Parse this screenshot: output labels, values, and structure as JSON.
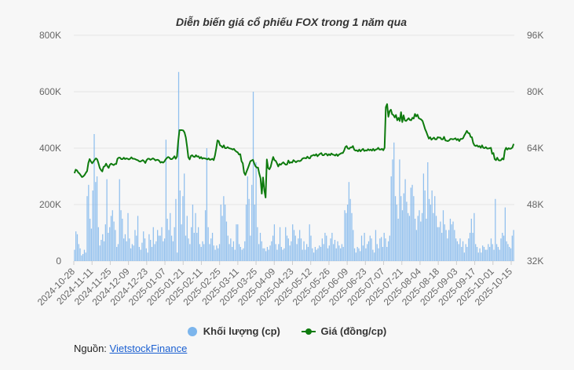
{
  "chart_data": {
    "type": "bar+line",
    "title": "Diễn biến giá cổ phiếu FOX trong 1 năm qua",
    "y_left": {
      "ticks": [
        "800K",
        "600K",
        "400K",
        "200K",
        "0"
      ],
      "ylim": [
        0,
        800000
      ]
    },
    "y_right": {
      "ticks": [
        "96K",
        "80K",
        "64K",
        "48K",
        "32K"
      ],
      "ylim": [
        32000,
        96000
      ]
    },
    "x_tick_labels": [
      "2024-10-28",
      "2024-11-11",
      "2024-11-25",
      "2024-12-09",
      "2024-12-23",
      "2025-01-07",
      "2025-01-21",
      "2025-02-11",
      "2025-02-25",
      "2025-03-11",
      "2025-03-25",
      "2025-04-09",
      "2025-04-23",
      "2025-05-12",
      "2025-05-26",
      "2025-06-09",
      "2025-06-23",
      "2025-07-07",
      "2025-07-21",
      "2025-08-04",
      "2025-08-18",
      "2025-09-03",
      "2025-09-17",
      "2025-10-01",
      "2025-10-15"
    ],
    "legend": [
      "Khối lượng (cp)",
      "Giá (đồng/cp)"
    ],
    "volume": [
      40000,
      105000,
      95000,
      60000,
      45000,
      20000,
      25000,
      40000,
      30000,
      230000,
      270000,
      150000,
      115000,
      250000,
      450000,
      280000,
      300000,
      120000,
      55000,
      75000,
      95000,
      70000,
      130000,
      290000,
      100000,
      120000,
      160000,
      180000,
      140000,
      110000,
      50000,
      60000,
      290000,
      180000,
      150000,
      80000,
      95000,
      70000,
      170000,
      80000,
      45000,
      60000,
      55000,
      110000,
      90000,
      160000,
      50000,
      40000,
      65000,
      105000,
      80000,
      45000,
      30000,
      95000,
      75000,
      50000,
      120000,
      60000,
      70000,
      110000,
      90000,
      90000,
      120000,
      70000,
      80000,
      430000,
      150000,
      110000,
      170000,
      90000,
      70000,
      120000,
      220000,
      30000,
      670000,
      250000,
      130000,
      230000,
      310000,
      90000,
      160000,
      80000,
      60000,
      120000,
      200000,
      100000,
      170000,
      100000,
      120000,
      60000,
      50000,
      70000,
      60000,
      180000,
      400000,
      120000,
      60000,
      80000,
      100000,
      55000,
      40000,
      55000,
      45000,
      60000,
      200000,
      160000,
      230000,
      200000,
      140000,
      90000,
      60000,
      80000,
      50000,
      70000,
      40000,
      130000,
      130000,
      60000,
      50000,
      40000,
      45000,
      70000,
      200000,
      300000,
      220000,
      90000,
      270000,
      600000,
      200000,
      350000,
      120000,
      60000,
      100000,
      70000,
      45000,
      45000,
      35000,
      50000,
      40000,
      55000,
      70000,
      90000,
      130000,
      60000,
      40000,
      60000,
      120000,
      50000,
      40000,
      45000,
      120000,
      90000,
      80000,
      55000,
      70000,
      130000,
      110000,
      90000,
      60000,
      80000,
      110000,
      80000,
      40000,
      70000,
      40000,
      60000,
      50000,
      130000,
      90000,
      45000,
      30000,
      50000,
      40000,
      45000,
      55000,
      50000,
      80000,
      60000,
      100000,
      90000,
      45000,
      55000,
      80000,
      100000,
      60000,
      75000,
      45000,
      70000,
      55000,
      45000,
      60000,
      50000,
      180000,
      170000,
      200000,
      280000,
      220000,
      170000,
      110000,
      45000,
      30000,
      50000,
      45000,
      35000,
      90000,
      55000,
      100000,
      45000,
      60000,
      70000,
      90000,
      80000,
      40000,
      30000,
      110000,
      60000,
      45000,
      80000,
      85000,
      50000,
      100000,
      80000,
      50000,
      70000,
      90000,
      300000,
      360000,
      420000,
      230000,
      200000,
      150000,
      360000,
      230000,
      180000,
      240000,
      290000,
      210000,
      170000,
      160000,
      260000,
      270000,
      230000,
      150000,
      110000,
      160000,
      180000,
      140000,
      170000,
      310000,
      250000,
      150000,
      350000,
      220000,
      200000,
      250000,
      170000,
      230000,
      160000,
      120000,
      120000,
      140000,
      100000,
      180000,
      130000,
      110000,
      80000,
      110000,
      150000,
      130000,
      140000,
      110000,
      80000,
      70000,
      60000,
      80000,
      50000,
      70000,
      30000,
      60000,
      50000,
      80000,
      100000,
      150000,
      100000,
      170000,
      60000,
      50000,
      30000,
      45000,
      30000,
      55000,
      50000,
      40000,
      40000,
      60000,
      50000,
      80000,
      60000,
      40000,
      220000,
      60000,
      50000,
      40000,
      80000,
      100000,
      90000,
      190000,
      70000,
      60000,
      50000,
      45000,
      90000,
      110000
    ],
    "price": [
      56900,
      57900,
      57700,
      57100,
      56800,
      56300,
      55800,
      56000,
      56400,
      57000,
      57500,
      59800,
      60900,
      60200,
      59700,
      60200,
      60700,
      61100,
      60800,
      59700,
      58400,
      57800,
      57400,
      58700,
      58900,
      59600,
      58900,
      58400,
      59300,
      59600,
      59400,
      59200,
      59500,
      59500,
      61000,
      61300,
      61300,
      60900,
      60900,
      61300,
      60900,
      61100,
      61000,
      60800,
      61000,
      61400,
      61000,
      61000,
      60900,
      60700,
      60600,
      60300,
      60200,
      60400,
      60600,
      60300,
      59800,
      60600,
      61000,
      61000,
      60700,
      60900,
      61100,
      60900,
      60500,
      60700,
      60700,
      60400,
      59900,
      60100,
      59900,
      60200,
      60800,
      61200,
      61500,
      61300,
      60900,
      60900,
      61200,
      61700,
      61000,
      61600,
      66000,
      69100,
      69100,
      69100,
      69000,
      68400,
      67000,
      64400,
      61400,
      60800,
      61800,
      62000,
      61600,
      61500,
      62000,
      61600,
      61700,
      61100,
      61500,
      61000,
      61200,
      61100,
      61000,
      60800,
      61100,
      60700,
      60800,
      61000,
      60600,
      61900,
      63900,
      66200,
      66000,
      64800,
      64600,
      64200,
      64800,
      64000,
      64000,
      64300,
      64000,
      63900,
      63800,
      63600,
      63800,
      63300,
      63000,
      62800,
      62200,
      62300,
      60300,
      59700,
      57100,
      56400,
      57400,
      58300,
      59300,
      60300,
      60500,
      60700,
      59700,
      58900,
      58500,
      58500,
      56800,
      55500,
      51100,
      55700,
      52100,
      50000,
      60800,
      58400,
      58000,
      58700,
      60200,
      61500,
      60600,
      60400,
      59700,
      58800,
      59500,
      59300,
      59700,
      60000,
      59600,
      59300,
      59400,
      60500,
      59800,
      60000,
      59900,
      60600,
      60300,
      60000,
      60300,
      60400,
      60300,
      60500,
      61000,
      61200,
      61200,
      61100,
      61600,
      61200,
      61100,
      61800,
      61900,
      62100,
      61900,
      62300,
      61700,
      62100,
      62400,
      62600,
      62000,
      62000,
      62400,
      62400,
      61900,
      62300,
      62000,
      62500,
      62200,
      62100,
      61900,
      62300,
      61800,
      62200,
      62400,
      62600,
      62600,
      63300,
      64300,
      64600,
      63900,
      63800,
      64200,
      64200,
      64600,
      63600,
      63300,
      63400,
      63100,
      63600,
      63100,
      63500,
      63800,
      63200,
      63400,
      63300,
      63700,
      63400,
      63600,
      63300,
      63800,
      63300,
      63600,
      63700,
      64100,
      63600,
      63600,
      63800,
      63400,
      64100,
      75600,
      76500,
      72900,
      74500,
      74900,
      73600,
      73400,
      72700,
      73400,
      71900,
      72600,
      71700,
      74200,
      71400,
      73300,
      71900,
      71700,
      72100,
      72500,
      72000,
      71900,
      72600,
      72400,
      73700,
      73000,
      73500,
      72500,
      72300,
      72100,
      71700,
      70600,
      69400,
      68600,
      67600,
      66700,
      67100,
      66400,
      66700,
      67000,
      66500,
      66500,
      67100,
      67000,
      67000,
      66500,
      66500,
      67200,
      66200,
      66100,
      66000,
      66200,
      66600,
      66600,
      66500,
      66600,
      66800,
      66300,
      66600,
      66000,
      66600,
      66600,
      66800,
      67600,
      68200,
      68900,
      68300,
      68200,
      67200,
      67100,
      65500,
      64800,
      64600,
      64800,
      64400,
      64600,
      64100,
      64800,
      64100,
      64000,
      64300,
      63900,
      63900,
      64000,
      64100,
      62400,
      62600,
      60900,
      60600,
      61300,
      60600,
      60500,
      60600,
      61100,
      60800,
      63300,
      64100,
      63600,
      64000,
      63800,
      63900,
      64200,
      65200
    ]
  },
  "source": {
    "label": "Nguồn:",
    "link_text": "VietstockFinance"
  }
}
